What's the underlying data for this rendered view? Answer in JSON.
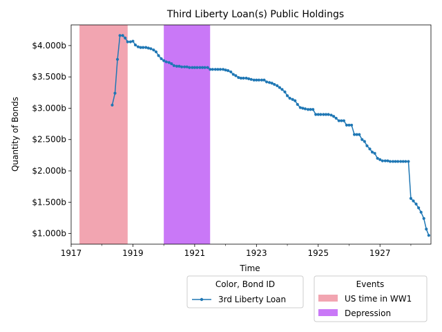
{
  "chart_data": {
    "type": "line",
    "title": "Third Liberty Loan(s) Public Holdings",
    "xlabel": "Time",
    "ylabel": "Quantity of Bonds",
    "xlim": [
      1917.0,
      1928.65
    ],
    "ylim": [
      0.83,
      4.33
    ],
    "x_ticks": [
      {
        "value": 1917,
        "label": "1917"
      },
      {
        "value": 1919,
        "label": "1919"
      },
      {
        "value": 1921,
        "label": "1921"
      },
      {
        "value": 1923,
        "label": "1923"
      },
      {
        "value": 1925,
        "label": "1925"
      },
      {
        "value": 1927,
        "label": "1927"
      }
    ],
    "x_minor_ticks": [
      1918,
      1920,
      1922,
      1924,
      1926,
      1928
    ],
    "y_ticks": [
      {
        "value": 1.0,
        "label": "$1.000b"
      },
      {
        "value": 1.5,
        "label": "$1.500b"
      },
      {
        "value": 2.0,
        "label": "$2.000b"
      },
      {
        "value": 2.5,
        "label": "$2.500b"
      },
      {
        "value": 3.0,
        "label": "$3.000b"
      },
      {
        "value": 3.5,
        "label": "$3.500b"
      },
      {
        "value": 4.0,
        "label": "$4.000b"
      }
    ],
    "events": [
      {
        "name": "US time in WW1",
        "start": 1917.27,
        "end": 1918.83,
        "color": "#f2a5b1"
      },
      {
        "name": "Depression",
        "start": 1920.0,
        "end": 1921.5,
        "color": "#c978f7"
      }
    ],
    "series": [
      {
        "name": "3rd Liberty Loan",
        "color": "#1f77b4",
        "x": [
          1918.33,
          1918.42,
          1918.5,
          1918.58,
          1918.67,
          1918.75,
          1918.83,
          1918.92,
          1919.0,
          1919.08,
          1919.17,
          1919.25,
          1919.33,
          1919.42,
          1919.5,
          1919.58,
          1919.67,
          1919.75,
          1919.83,
          1919.92,
          1920.0,
          1920.08,
          1920.17,
          1920.25,
          1920.33,
          1920.42,
          1920.5,
          1920.58,
          1920.67,
          1920.75,
          1920.83,
          1920.92,
          1921.0,
          1921.08,
          1921.17,
          1921.25,
          1921.33,
          1921.42,
          1921.5,
          1921.58,
          1921.67,
          1921.75,
          1921.83,
          1921.92,
          1922.0,
          1922.08,
          1922.17,
          1922.25,
          1922.33,
          1922.42,
          1922.5,
          1922.58,
          1922.67,
          1922.75,
          1922.83,
          1922.92,
          1923.0,
          1923.08,
          1923.17,
          1923.25,
          1923.33,
          1923.42,
          1923.5,
          1923.58,
          1923.67,
          1923.75,
          1923.83,
          1923.92,
          1924.0,
          1924.08,
          1924.17,
          1924.25,
          1924.33,
          1924.42,
          1924.5,
          1924.58,
          1924.67,
          1924.75,
          1924.83,
          1924.92,
          1925.0,
          1925.08,
          1925.17,
          1925.25,
          1925.33,
          1925.42,
          1925.5,
          1925.58,
          1925.67,
          1925.75,
          1925.83,
          1925.92,
          1926.0,
          1926.08,
          1926.17,
          1926.25,
          1926.33,
          1926.42,
          1926.5,
          1926.58,
          1926.67,
          1926.75,
          1926.83,
          1926.92,
          1927.0,
          1927.08,
          1927.17,
          1927.25,
          1927.33,
          1927.42,
          1927.5,
          1927.58,
          1927.67,
          1927.75,
          1927.83,
          1927.92,
          1928.0,
          1928.08,
          1928.17,
          1928.25,
          1928.33,
          1928.42,
          1928.5,
          1928.58
        ],
        "y": [
          3.05,
          3.24,
          3.78,
          4.16,
          4.16,
          4.12,
          4.06,
          4.06,
          4.07,
          4.01,
          3.98,
          3.97,
          3.97,
          3.97,
          3.96,
          3.95,
          3.93,
          3.9,
          3.84,
          3.79,
          3.76,
          3.74,
          3.73,
          3.71,
          3.68,
          3.67,
          3.67,
          3.66,
          3.66,
          3.66,
          3.65,
          3.65,
          3.65,
          3.65,
          3.65,
          3.65,
          3.65,
          3.65,
          3.62,
          3.62,
          3.62,
          3.62,
          3.62,
          3.62,
          3.61,
          3.6,
          3.58,
          3.54,
          3.52,
          3.49,
          3.48,
          3.48,
          3.48,
          3.47,
          3.46,
          3.45,
          3.45,
          3.45,
          3.45,
          3.45,
          3.42,
          3.41,
          3.4,
          3.38,
          3.36,
          3.33,
          3.3,
          3.26,
          3.2,
          3.16,
          3.14,
          3.12,
          3.06,
          3.01,
          3.0,
          2.99,
          2.98,
          2.98,
          2.98,
          2.9,
          2.9,
          2.9,
          2.9,
          2.9,
          2.9,
          2.89,
          2.87,
          2.84,
          2.8,
          2.8,
          2.8,
          2.73,
          2.73,
          2.73,
          2.58,
          2.58,
          2.58,
          2.5,
          2.47,
          2.4,
          2.35,
          2.3,
          2.28,
          2.2,
          2.18,
          2.16,
          2.16,
          2.16,
          2.15,
          2.15,
          2.15,
          2.15,
          2.15,
          2.15,
          2.15,
          2.15,
          1.56,
          1.52,
          1.47,
          1.41,
          1.34,
          1.24,
          1.07,
          0.97
        ]
      }
    ],
    "legends": [
      {
        "title": "Color, Bond ID",
        "entries": [
          "3rd Liberty Loan"
        ]
      },
      {
        "title": "Events",
        "entries": [
          "US time in WW1",
          "Depression"
        ]
      }
    ]
  }
}
